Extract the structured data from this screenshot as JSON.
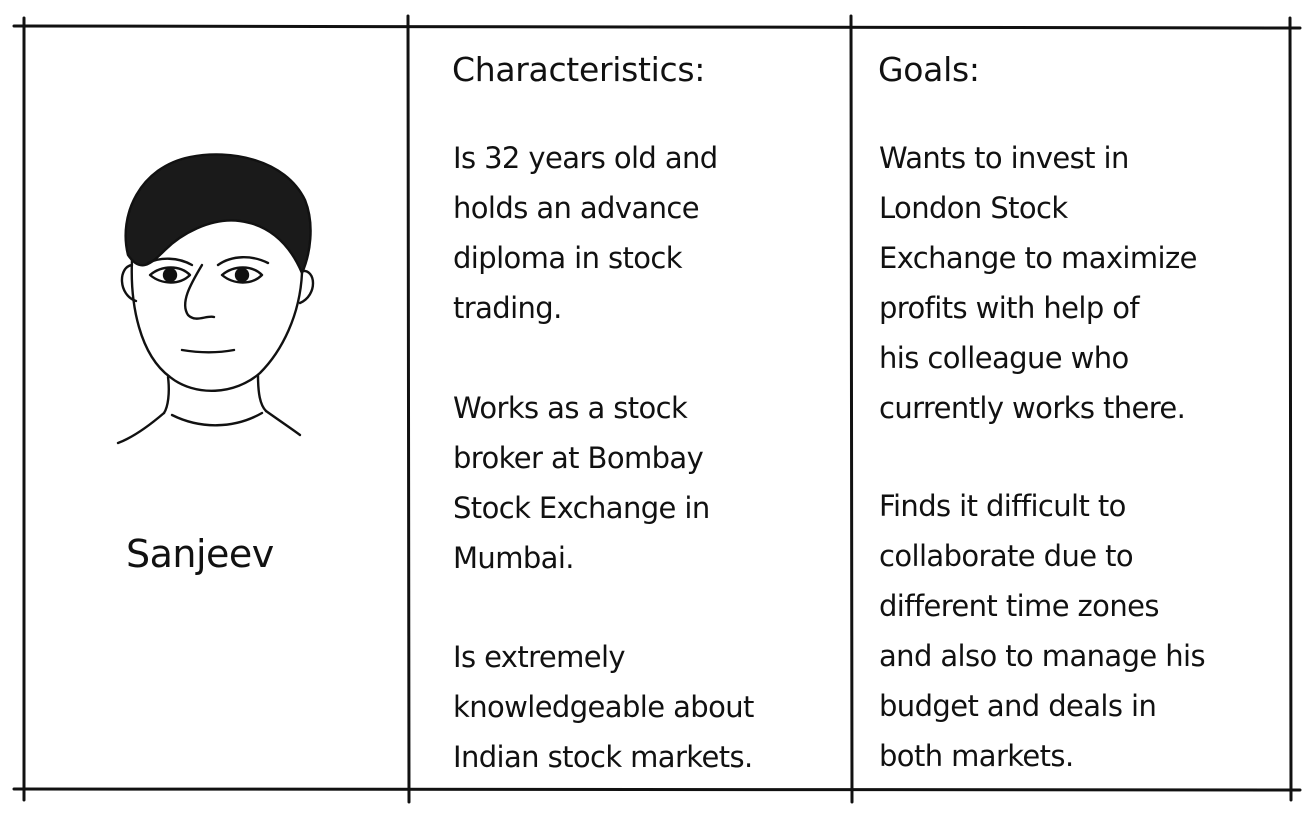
{
  "persona": {
    "name": "Sanjeev",
    "portrait_icon": "hand-drawn-face-icon"
  },
  "characteristics": {
    "heading": "Characteristics:",
    "paragraphs": [
      [
        "Is 32 years old and",
        "holds an advance",
        "diploma in stock",
        "trading."
      ],
      [
        "Works as a stock",
        "broker at Bombay",
        "Stock Exchange in",
        "Mumbai."
      ],
      [
        "Is extremely",
        "knowledgeable about",
        "Indian stock markets."
      ]
    ]
  },
  "goals": {
    "heading": "Goals:",
    "paragraphs": [
      [
        "Wants to invest in",
        "London Stock",
        "Exchange to maximize",
        "profits with help of",
        "his colleague who",
        "currently works there."
      ],
      [
        "Finds it difficult to",
        "collaborate due to",
        "different time zones",
        "and also to manage his",
        "budget and deals in",
        "both markets."
      ]
    ]
  },
  "colors": {
    "ink": "#111111",
    "background": "#ffffff"
  }
}
